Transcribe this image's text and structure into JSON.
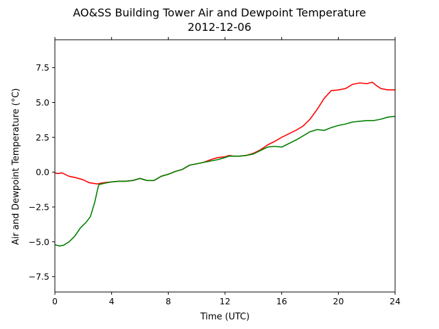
{
  "chart_data": {
    "type": "line",
    "title": "AO&SS Building Tower Air and Dewpoint Temperature",
    "subtitle": "2012-12-06",
    "xlabel": "Time (UTC)",
    "ylabel": "Air and Dewpoint Temperature (°C)",
    "xlim": [
      0,
      24
    ],
    "ylim": [
      -8.6,
      9.5
    ],
    "xticks": [
      0,
      4,
      8,
      12,
      16,
      20,
      24
    ],
    "xtick_labels": [
      "0",
      "4",
      "8",
      "12",
      "16",
      "20",
      "24"
    ],
    "yticks": [
      -7.5,
      -5.0,
      -2.5,
      0.0,
      2.5,
      5.0,
      7.5
    ],
    "ytick_labels": [
      "−7.5",
      "−5.0",
      "−2.5",
      "0.0",
      "2.5",
      "5.0",
      "7.5"
    ],
    "grid": false,
    "legend": "none",
    "series": [
      {
        "color": "#ff0000",
        "points": [
          [
            0,
            -0.05
          ],
          [
            0.2,
            -0.1
          ],
          [
            0.5,
            -0.05
          ],
          [
            1.0,
            -0.3
          ],
          [
            1.5,
            -0.4
          ],
          [
            2.0,
            -0.55
          ],
          [
            2.4,
            -0.75
          ],
          [
            2.7,
            -0.8
          ],
          [
            3.0,
            -0.85
          ],
          [
            3.2,
            -0.8
          ],
          [
            3.5,
            -0.75
          ],
          [
            4.0,
            -0.7
          ],
          [
            4.5,
            -0.65
          ],
          [
            5.0,
            -0.65
          ],
          [
            5.5,
            -0.6
          ],
          [
            6.0,
            -0.45
          ],
          [
            6.5,
            -0.6
          ],
          [
            7.0,
            -0.6
          ],
          [
            7.5,
            -0.3
          ],
          [
            8.0,
            -0.15
          ],
          [
            8.5,
            0.05
          ],
          [
            9.0,
            0.2
          ],
          [
            9.5,
            0.5
          ],
          [
            10.0,
            0.6
          ],
          [
            10.5,
            0.7
          ],
          [
            11.0,
            0.9
          ],
          [
            11.5,
            1.05
          ],
          [
            12.0,
            1.1
          ],
          [
            12.3,
            1.2
          ],
          [
            12.6,
            1.15
          ],
          [
            13.0,
            1.15
          ],
          [
            13.5,
            1.2
          ],
          [
            14.0,
            1.35
          ],
          [
            14.5,
            1.6
          ],
          [
            15.0,
            1.95
          ],
          [
            15.5,
            2.2
          ],
          [
            16.0,
            2.5
          ],
          [
            16.5,
            2.75
          ],
          [
            17.0,
            3.0
          ],
          [
            17.5,
            3.3
          ],
          [
            18.0,
            3.8
          ],
          [
            18.5,
            4.5
          ],
          [
            19.0,
            5.3
          ],
          [
            19.5,
            5.85
          ],
          [
            20.0,
            5.9
          ],
          [
            20.5,
            6.0
          ],
          [
            21.0,
            6.3
          ],
          [
            21.5,
            6.4
          ],
          [
            22.0,
            6.35
          ],
          [
            22.4,
            6.45
          ],
          [
            22.7,
            6.2
          ],
          [
            23.0,
            6.0
          ],
          [
            23.5,
            5.9
          ],
          [
            24.0,
            5.9
          ]
        ]
      },
      {
        "color": "#008000",
        "points": [
          [
            0,
            -5.2
          ],
          [
            0.3,
            -5.3
          ],
          [
            0.6,
            -5.25
          ],
          [
            1.0,
            -5.0
          ],
          [
            1.4,
            -4.6
          ],
          [
            1.8,
            -4.0
          ],
          [
            2.2,
            -3.6
          ],
          [
            2.5,
            -3.2
          ],
          [
            2.8,
            -2.2
          ],
          [
            3.0,
            -1.3
          ],
          [
            3.1,
            -0.9
          ],
          [
            3.5,
            -0.8
          ],
          [
            4.0,
            -0.7
          ],
          [
            4.5,
            -0.65
          ],
          [
            5.0,
            -0.65
          ],
          [
            5.5,
            -0.6
          ],
          [
            6.0,
            -0.45
          ],
          [
            6.5,
            -0.6
          ],
          [
            7.0,
            -0.6
          ],
          [
            7.5,
            -0.3
          ],
          [
            8.0,
            -0.15
          ],
          [
            8.5,
            0.05
          ],
          [
            9.0,
            0.2
          ],
          [
            9.5,
            0.5
          ],
          [
            10.0,
            0.6
          ],
          [
            10.5,
            0.7
          ],
          [
            11.0,
            0.8
          ],
          [
            11.5,
            0.9
          ],
          [
            12.0,
            1.05
          ],
          [
            12.3,
            1.15
          ],
          [
            12.6,
            1.15
          ],
          [
            13.0,
            1.15
          ],
          [
            13.5,
            1.2
          ],
          [
            14.0,
            1.3
          ],
          [
            14.5,
            1.55
          ],
          [
            15.0,
            1.8
          ],
          [
            15.5,
            1.85
          ],
          [
            16.0,
            1.8
          ],
          [
            16.5,
            2.05
          ],
          [
            17.0,
            2.3
          ],
          [
            17.5,
            2.6
          ],
          [
            18.0,
            2.9
          ],
          [
            18.5,
            3.05
          ],
          [
            19.0,
            3.0
          ],
          [
            19.5,
            3.2
          ],
          [
            20.0,
            3.35
          ],
          [
            20.5,
            3.45
          ],
          [
            21.0,
            3.6
          ],
          [
            21.5,
            3.65
          ],
          [
            22.0,
            3.7
          ],
          [
            22.5,
            3.7
          ],
          [
            23.0,
            3.8
          ],
          [
            23.5,
            3.95
          ],
          [
            24.0,
            4.0
          ]
        ]
      }
    ]
  }
}
